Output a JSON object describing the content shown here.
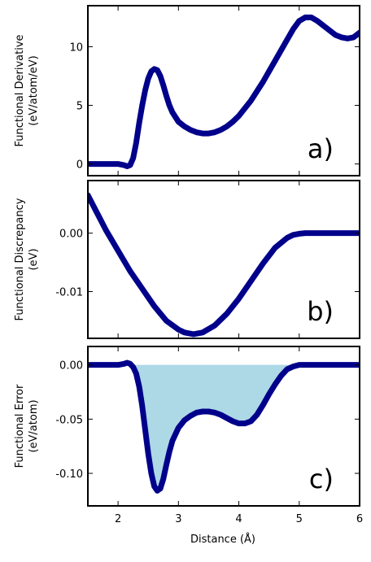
{
  "figure": {
    "xlabel": "Distance (Å)"
  },
  "chart_data": [
    {
      "type": "line",
      "panel_label": "a)",
      "ylabel_line1": "Functional Derivative",
      "ylabel_line2": "(eV/atom/eV)",
      "xlim": [
        1.5,
        6
      ],
      "ylim": [
        -1,
        13.5
      ],
      "yticks": [
        0,
        5,
        10
      ],
      "ytick_labels": [
        "0",
        "5",
        "10"
      ],
      "series": [
        {
          "color": "#00008b",
          "x": [
            1.5,
            1.8,
            2.0,
            2.1,
            2.15,
            2.2,
            2.25,
            2.3,
            2.35,
            2.4,
            2.45,
            2.5,
            2.55,
            2.6,
            2.65,
            2.7,
            2.75,
            2.8,
            2.85,
            2.9,
            3.0,
            3.1,
            3.2,
            3.3,
            3.4,
            3.5,
            3.6,
            3.7,
            3.8,
            3.9,
            4.0,
            4.2,
            4.4,
            4.6,
            4.8,
            4.9,
            5.0,
            5.1,
            5.2,
            5.3,
            5.4,
            5.5,
            5.6,
            5.7,
            5.8,
            5.9,
            6.0
          ],
          "y": [
            0,
            0,
            0,
            -0.1,
            -0.2,
            -0.1,
            0.5,
            1.8,
            3.5,
            5.0,
            6.3,
            7.3,
            7.9,
            8.1,
            8.0,
            7.5,
            6.7,
            5.8,
            5.0,
            4.4,
            3.6,
            3.2,
            2.9,
            2.7,
            2.6,
            2.6,
            2.7,
            2.9,
            3.2,
            3.6,
            4.1,
            5.4,
            7.0,
            8.8,
            10.6,
            11.5,
            12.2,
            12.5,
            12.5,
            12.2,
            11.8,
            11.4,
            11.0,
            10.8,
            10.7,
            10.8,
            11.2
          ]
        }
      ]
    },
    {
      "type": "line",
      "panel_label": "b)",
      "ylabel_line1": "Functional Discrepancy",
      "ylabel_line2": "(eV)",
      "xlim": [
        1.5,
        6
      ],
      "ylim": [
        -0.018,
        0.009
      ],
      "yticks": [
        0.0,
        -0.01
      ],
      "ytick_labels": [
        "0.00",
        "-0.01"
      ],
      "series": [
        {
          "color": "#00008b",
          "x": [
            1.5,
            1.6,
            1.8,
            2.0,
            2.2,
            2.4,
            2.6,
            2.8,
            3.0,
            3.1,
            3.25,
            3.4,
            3.6,
            3.8,
            4.0,
            4.2,
            4.4,
            4.6,
            4.8,
            4.9,
            5.0,
            5.1,
            5.2,
            5.4,
            5.6,
            5.8,
            6.0
          ],
          "y": [
            0.0065,
            0.0045,
            0.0005,
            -0.003,
            -0.0065,
            -0.0095,
            -0.0125,
            -0.015,
            -0.0165,
            -0.017,
            -0.0173,
            -0.017,
            -0.0158,
            -0.0138,
            -0.0112,
            -0.0082,
            -0.0052,
            -0.0025,
            -0.0008,
            -0.0003,
            -0.0001,
            0.0,
            0.0,
            0.0,
            0.0,
            0.0,
            0.0
          ]
        }
      ]
    },
    {
      "type": "area",
      "panel_label": "c)",
      "ylabel_line1": "Functional Error",
      "ylabel_line2": "(eV/atom)",
      "xlim": [
        1.5,
        6
      ],
      "ylim": [
        -0.13,
        0.017
      ],
      "yticks": [
        0.0,
        -0.05,
        -0.1
      ],
      "ytick_labels": [
        "0.00",
        "-0.05",
        "-0.10"
      ],
      "fill_color": "#add8e6",
      "series": [
        {
          "color": "#00008b",
          "x": [
            1.5,
            1.8,
            2.0,
            2.1,
            2.15,
            2.2,
            2.25,
            2.3,
            2.35,
            2.4,
            2.45,
            2.5,
            2.55,
            2.6,
            2.65,
            2.7,
            2.75,
            2.8,
            2.85,
            2.9,
            3.0,
            3.1,
            3.2,
            3.3,
            3.4,
            3.5,
            3.6,
            3.7,
            3.8,
            3.9,
            4.0,
            4.1,
            4.2,
            4.3,
            4.4,
            4.5,
            4.6,
            4.7,
            4.8,
            4.9,
            5.0,
            5.1,
            5.2,
            5.4,
            5.6,
            5.8,
            6.0
          ],
          "y": [
            0.0,
            0.0,
            0.0,
            0.001,
            0.002,
            0.001,
            -0.002,
            -0.008,
            -0.02,
            -0.038,
            -0.06,
            -0.082,
            -0.1,
            -0.112,
            -0.116,
            -0.114,
            -0.105,
            -0.092,
            -0.08,
            -0.07,
            -0.058,
            -0.051,
            -0.047,
            -0.044,
            -0.043,
            -0.043,
            -0.044,
            -0.046,
            -0.049,
            -0.052,
            -0.054,
            -0.054,
            -0.052,
            -0.046,
            -0.037,
            -0.027,
            -0.018,
            -0.01,
            -0.004,
            -0.0015,
            0.0,
            0.0,
            0.0,
            0.0,
            0.0,
            0.0,
            0.0
          ]
        }
      ]
    }
  ]
}
